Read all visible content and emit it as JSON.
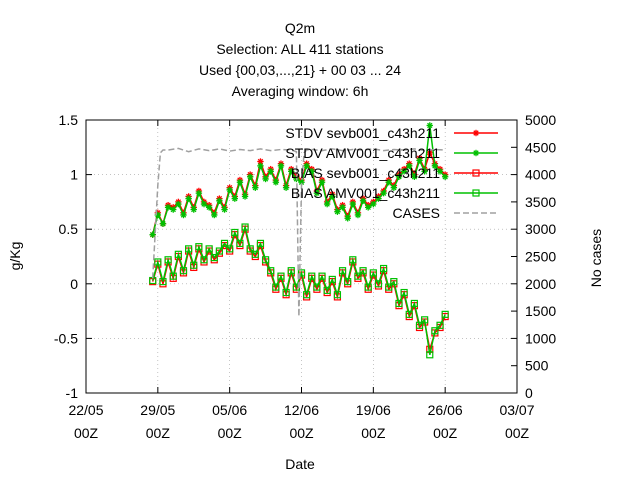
{
  "chart_data": {
    "type": "line",
    "title_lines": [
      "Q2m",
      "Selection: ALL     411 stations",
      "Used {00,03,...,21} + 00 03 ... 24",
      "Averaging window:  6h"
    ],
    "xlabel": "Date",
    "ylabel": "g/Kg",
    "y2label": "No cases",
    "x_tick_labels": [
      [
        "22/05",
        "00Z"
      ],
      [
        "29/05",
        "00Z"
      ],
      [
        "05/06",
        "00Z"
      ],
      [
        "12/06",
        "00Z"
      ],
      [
        "19/06",
        "00Z"
      ],
      [
        "26/06",
        "00Z"
      ],
      [
        "03/07",
        "00Z"
      ]
    ],
    "xlim_days": [
      0,
      42
    ],
    "ylim": [
      -1,
      1.5
    ],
    "y_ticks": [
      "1.5",
      "1",
      "0.5",
      "0",
      "-0.5",
      "-1"
    ],
    "y2lim": [
      0,
      5000
    ],
    "y2_ticks": [
      "5000",
      "4500",
      "4000",
      "3500",
      "3000",
      "2500",
      "2000",
      "1500",
      "1000",
      "500",
      "0"
    ],
    "grid": true,
    "legend_position": "top-right",
    "colors": {
      "red": "#ff0000",
      "green": "#00c000",
      "cases": "#a0a0a0"
    },
    "series": [
      {
        "name": "STDV sevb001_c43h211",
        "marker": "star",
        "color": "#ff0000",
        "x_days": [
          6.5,
          7.0,
          7.5,
          8.0,
          8.5,
          9.0,
          9.5,
          10.0,
          10.5,
          11.0,
          11.5,
          12.0,
          12.5,
          13.0,
          13.5,
          14.0,
          14.5,
          15.0,
          15.5,
          16.0,
          16.5,
          17.0,
          17.5,
          18.0,
          18.5,
          19.0,
          19.5,
          20.0,
          20.5,
          21.0,
          21.5,
          22.0,
          22.5,
          23.0,
          23.5,
          24.0,
          24.5,
          25.0,
          25.5,
          26.0,
          26.5,
          27.0,
          27.5,
          28.0,
          28.5,
          29.0,
          29.5,
          30.0,
          30.5,
          31.0,
          31.5,
          32.0,
          32.5,
          33.0,
          33.5,
          34.0,
          34.5,
          35.0
        ],
        "values": [
          0.45,
          0.65,
          0.55,
          0.72,
          0.7,
          0.75,
          0.65,
          0.8,
          0.7,
          0.85,
          0.75,
          0.72,
          0.65,
          0.78,
          0.7,
          0.88,
          0.8,
          0.95,
          0.82,
          1.0,
          0.9,
          1.12,
          0.98,
          1.05,
          0.95,
          1.1,
          0.9,
          1.05,
          0.98,
          0.95,
          1.1,
          1.05,
          0.85,
          0.95,
          0.75,
          0.82,
          0.68,
          0.72,
          0.62,
          0.75,
          0.65,
          0.78,
          0.72,
          0.75,
          0.8,
          0.85,
          0.95,
          0.9,
          1.0,
          1.05,
          1.1,
          1.0,
          1.15,
          1.05,
          1.2,
          1.1,
          1.05,
          1.0
        ]
      },
      {
        "name": "STDV AMV001_c43h211",
        "marker": "star",
        "color": "#00c000",
        "x_days": [
          6.5,
          7.0,
          7.5,
          8.0,
          8.5,
          9.0,
          9.5,
          10.0,
          10.5,
          11.0,
          11.5,
          12.0,
          12.5,
          13.0,
          13.5,
          14.0,
          14.5,
          15.0,
          15.5,
          16.0,
          16.5,
          17.0,
          17.5,
          18.0,
          18.5,
          19.0,
          19.5,
          20.0,
          20.5,
          21.0,
          21.5,
          22.0,
          22.5,
          23.0,
          23.5,
          24.0,
          24.5,
          25.0,
          25.5,
          26.0,
          26.5,
          27.0,
          27.5,
          28.0,
          28.5,
          29.0,
          29.5,
          30.0,
          30.5,
          31.0,
          31.5,
          32.0,
          32.5,
          33.0,
          33.5,
          34.0,
          34.5,
          35.0
        ],
        "values": [
          0.45,
          0.63,
          0.55,
          0.7,
          0.68,
          0.73,
          0.63,
          0.78,
          0.68,
          0.83,
          0.73,
          0.7,
          0.63,
          0.76,
          0.68,
          0.86,
          0.78,
          0.93,
          0.8,
          0.98,
          0.88,
          1.08,
          0.96,
          1.03,
          0.93,
          1.08,
          0.88,
          1.03,
          0.96,
          0.93,
          1.08,
          1.03,
          0.83,
          0.93,
          0.73,
          0.8,
          0.66,
          0.7,
          0.6,
          0.73,
          0.63,
          0.76,
          0.7,
          0.73,
          0.78,
          0.83,
          0.93,
          0.88,
          0.98,
          1.03,
          1.08,
          0.98,
          1.13,
          1.03,
          1.45,
          1.08,
          1.03,
          0.98
        ]
      },
      {
        "name": "BIAS sevb001_c43h211",
        "marker": "square",
        "color": "#ff0000",
        "x_days": [
          6.5,
          7.0,
          7.5,
          8.0,
          8.5,
          9.0,
          9.5,
          10.0,
          10.5,
          11.0,
          11.5,
          12.0,
          12.5,
          13.0,
          13.5,
          14.0,
          14.5,
          15.0,
          15.5,
          16.0,
          16.5,
          17.0,
          17.5,
          18.0,
          18.5,
          19.0,
          19.5,
          20.0,
          20.5,
          21.0,
          21.5,
          22.0,
          22.5,
          23.0,
          23.5,
          24.0,
          24.5,
          25.0,
          25.5,
          26.0,
          26.5,
          27.0,
          27.5,
          28.0,
          28.5,
          29.0,
          29.5,
          30.0,
          30.5,
          31.0,
          31.5,
          32.0,
          32.5,
          33.0,
          33.5,
          34.0,
          34.5,
          35.0
        ],
        "values": [
          0.02,
          0.18,
          0.0,
          0.2,
          0.05,
          0.25,
          0.1,
          0.3,
          0.15,
          0.32,
          0.2,
          0.3,
          0.22,
          0.28,
          0.35,
          0.3,
          0.45,
          0.35,
          0.5,
          0.3,
          0.25,
          0.35,
          0.2,
          0.1,
          -0.05,
          0.05,
          -0.1,
          0.1,
          -0.05,
          0.08,
          -0.12,
          0.05,
          -0.05,
          0.05,
          -0.08,
          0.02,
          -0.12,
          0.1,
          0.0,
          0.2,
          0.05,
          0.1,
          -0.05,
          0.08,
          -0.02,
          0.12,
          -0.05,
          0.0,
          -0.2,
          -0.1,
          -0.3,
          -0.2,
          -0.4,
          -0.35,
          -0.6,
          -0.45,
          -0.4,
          -0.3
        ]
      },
      {
        "name": "BIAS AMV001_c43h211",
        "marker": "square",
        "color": "#00c000",
        "x_days": [
          6.5,
          7.0,
          7.5,
          8.0,
          8.5,
          9.0,
          9.5,
          10.0,
          10.5,
          11.0,
          11.5,
          12.0,
          12.5,
          13.0,
          13.5,
          14.0,
          14.5,
          15.0,
          15.5,
          16.0,
          16.5,
          17.0,
          17.5,
          18.0,
          18.5,
          19.0,
          19.5,
          20.0,
          20.5,
          21.0,
          21.5,
          22.0,
          22.5,
          23.0,
          23.5,
          24.0,
          24.5,
          25.0,
          25.5,
          26.0,
          26.5,
          27.0,
          27.5,
          28.0,
          28.5,
          29.0,
          29.5,
          30.0,
          30.5,
          31.0,
          31.5,
          32.0,
          32.5,
          33.0,
          33.5,
          34.0,
          34.5,
          35.0
        ],
        "values": [
          0.03,
          0.2,
          0.02,
          0.22,
          0.07,
          0.27,
          0.12,
          0.32,
          0.17,
          0.34,
          0.22,
          0.32,
          0.24,
          0.3,
          0.37,
          0.32,
          0.47,
          0.37,
          0.52,
          0.32,
          0.27,
          0.37,
          0.22,
          0.12,
          -0.03,
          0.07,
          -0.08,
          0.12,
          -0.03,
          0.1,
          -0.1,
          0.07,
          -0.03,
          0.07,
          -0.06,
          0.04,
          -0.1,
          0.12,
          0.02,
          0.22,
          0.07,
          0.12,
          -0.03,
          0.1,
          0.0,
          0.14,
          -0.03,
          0.02,
          -0.18,
          -0.08,
          -0.28,
          -0.18,
          -0.38,
          -0.33,
          -0.65,
          -0.43,
          -0.38,
          -0.28
        ]
      },
      {
        "name": "CASES",
        "marker": "none",
        "dashed": true,
        "color": "#a0a0a0",
        "axis": "y2",
        "x_days": [
          6.5,
          7.0,
          7.25,
          7.5,
          8.0,
          9.0,
          10.0,
          11.0,
          12.0,
          13.0,
          14.0,
          15.0,
          16.0,
          17.0,
          18.0,
          19.0,
          20.0,
          20.5,
          20.75,
          21.0,
          21.25,
          21.5,
          22.0,
          23.0,
          24.0,
          25.0,
          26.0,
          27.0,
          28.0,
          29.0,
          30.0,
          31.0,
          32.0,
          33.0,
          34.0,
          35.0
        ],
        "values": [
          2100,
          3800,
          4400,
          4450,
          4450,
          4480,
          4420,
          4470,
          4440,
          4470,
          4430,
          4460,
          4440,
          4470,
          4440,
          4460,
          4450,
          4420,
          1400,
          3800,
          4400,
          4450,
          4460,
          4440,
          4470,
          4440,
          4460,
          4450,
          4470,
          4440,
          4460,
          4450,
          4470,
          4440,
          4460,
          4450
        ]
      }
    ]
  }
}
